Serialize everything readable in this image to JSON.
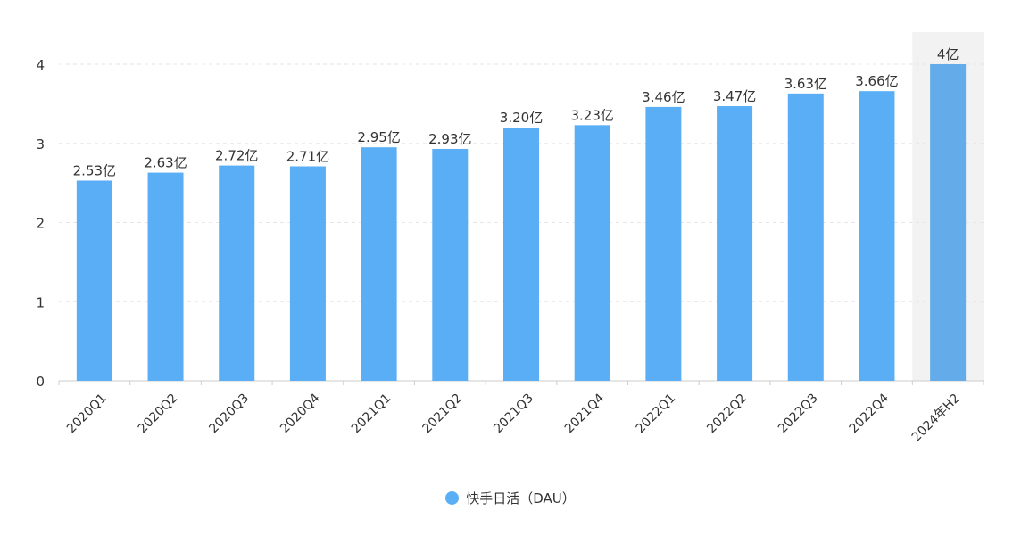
{
  "chart_data": {
    "type": "bar",
    "categories": [
      "2020Q1",
      "2020Q2",
      "2020Q3",
      "2020Q4",
      "2021Q1",
      "2021Q2",
      "2021Q3",
      "2021Q4",
      "2022Q1",
      "2022Q2",
      "2022Q3",
      "2022Q4",
      "2024年H2"
    ],
    "series": [
      {
        "name": "快手日活（DAU）",
        "values": [
          2.53,
          2.63,
          2.72,
          2.71,
          2.95,
          2.93,
          3.2,
          3.23,
          3.46,
          3.47,
          3.63,
          3.66,
          4
        ],
        "data_labels": [
          "2.53亿",
          "2.63亿",
          "2.72亿",
          "2.71亿",
          "2.95亿",
          "2.93亿",
          "3.20亿",
          "3.23亿",
          "3.46亿",
          "3.47亿",
          "3.63亿",
          "3.66亿",
          "4亿"
        ]
      }
    ],
    "y_ticks": [
      "0",
      "1",
      "2",
      "3",
      "4"
    ],
    "ylim": [
      0,
      4
    ],
    "grid": true,
    "legend_position": "bottom-center",
    "highlighted_category": "2024年H2",
    "colors": {
      "bar": "#5aaef5",
      "bar_highlight": "#64abe9",
      "highlight_background": "#f2f2f2",
      "grid": "#e6e6e6",
      "axis": "#cccccc",
      "text": "#333333"
    }
  }
}
